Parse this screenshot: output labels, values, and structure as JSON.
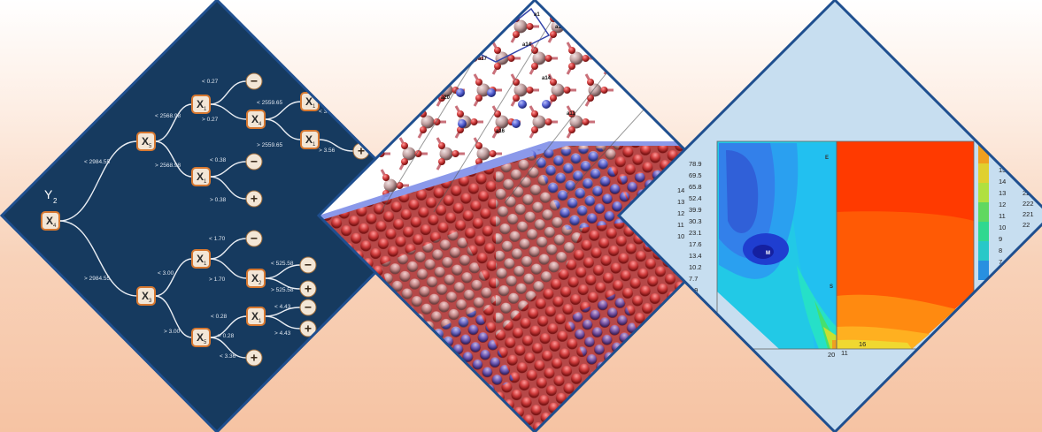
{
  "panels": {
    "decision_tree": {
      "root_label": "Y",
      "root_sub": "2",
      "nodes": [
        {
          "id": "x4",
          "label": "X",
          "sub": "4"
        },
        {
          "id": "x5a",
          "label": "X",
          "sub": "5"
        },
        {
          "id": "x1a",
          "label": "X",
          "sub": "1"
        },
        {
          "id": "x4b",
          "label": "X",
          "sub": "4"
        },
        {
          "id": "x1b",
          "label": "X",
          "sub": "1"
        },
        {
          "id": "x1c",
          "label": "X",
          "sub": "1"
        },
        {
          "id": "x1d",
          "label": "X",
          "sub": "1"
        },
        {
          "id": "x3",
          "label": "X",
          "sub": "3"
        },
        {
          "id": "x1e",
          "label": "X",
          "sub": "1"
        },
        {
          "id": "x2",
          "label": "X",
          "sub": "2"
        },
        {
          "id": "x5b",
          "label": "X",
          "sub": "5"
        },
        {
          "id": "x1f",
          "label": "X",
          "sub": "1"
        }
      ],
      "edge_labels": [
        "< 2984.55",
        "> 2984.55",
        "< 2568.98",
        "> 2568.98",
        "< 0.27",
        "> 0.27",
        "< 2559.65",
        "> 2559.65",
        "< 3.56",
        "> 3.56",
        "< 0.38",
        "> 0.38",
        "< 3.00",
        "> 3.00",
        "< 1.70",
        "> 1.70",
        "< 525.58",
        "> 525.58",
        "< 0.28",
        "> 0.28",
        "< 4.43",
        "> 4.43",
        "< 3.36"
      ],
      "leaf_signs": {
        "minus": "−",
        "plus": "+"
      }
    },
    "lattice": {
      "atom_labels": [
        "a1",
        "a14",
        "a17",
        "a20",
        "a16",
        "a11",
        "a14",
        "a16"
      ]
    },
    "contour": {
      "left_ticks": [
        "78.9",
        "69.5",
        "65.8",
        "52.4",
        "39.9",
        "30.3",
        "23.1",
        "17.6",
        "13.4",
        "10.2",
        "7.7",
        "5.9"
      ],
      "left_index": [
        "14",
        "13",
        "12",
        "11",
        "10"
      ],
      "right_index": [
        "16",
        "15",
        "14",
        "13",
        "12",
        "11",
        "10",
        "9",
        "8",
        "7"
      ],
      "right_values": [
        "223",
        "222",
        "221",
        "22"
      ],
      "bottom_labels": [
        "20",
        "11",
        "16"
      ],
      "region_marks": [
        "M",
        "S",
        "E"
      ]
    }
  },
  "colors": {
    "border_blue": "#1f4f8f",
    "tree_bg": "#163a5f",
    "node_fill": "#f3e6d6",
    "node_stroke": "#d77830",
    "oxygen_red": "#d03c3c",
    "metal_pink": "#c2a2a2",
    "dopant_blue": "#5a66d8",
    "contour_bg": "#c7def0"
  }
}
